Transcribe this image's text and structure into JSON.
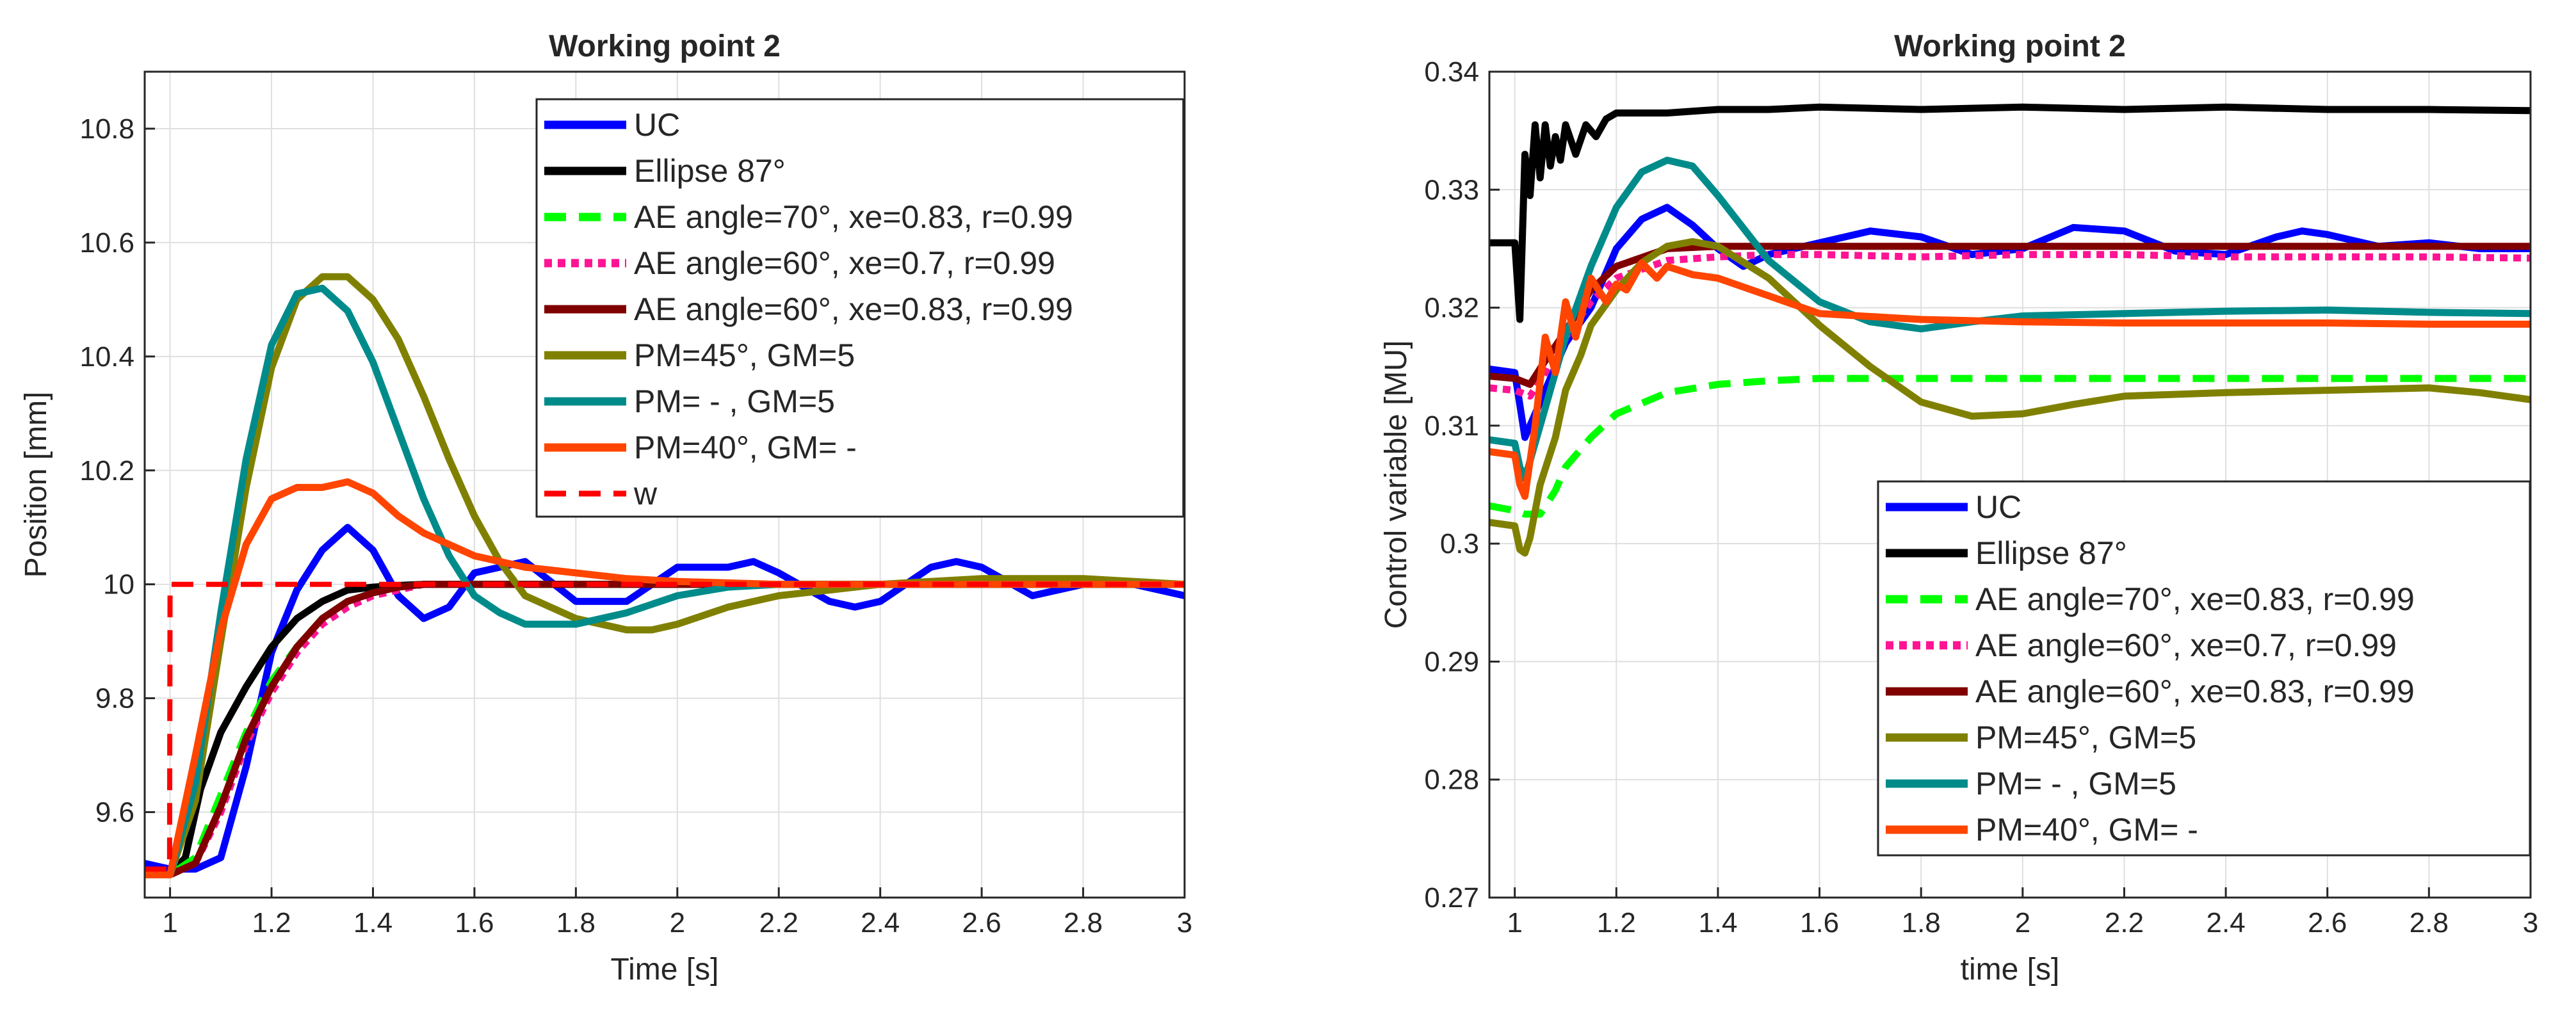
{
  "chart_data": [
    {
      "type": "line",
      "title": "Working point 2",
      "xlabel": "Time [s]",
      "ylabel": "Position [mm]",
      "xlim": [
        0.95,
        3.0
      ],
      "ylim": [
        9.45,
        10.9
      ],
      "xticks": [
        1,
        1.2,
        1.4,
        1.6,
        1.8,
        2,
        2.2,
        2.4,
        2.6,
        2.8,
        3
      ],
      "xtick_labels": [
        "1",
        "1.2",
        "1.4",
        "1.6",
        "1.8",
        "2",
        "2.2",
        "2.4",
        "2.6",
        "2.8",
        "3"
      ],
      "yticks": [
        9.6,
        9.8,
        10,
        10.2,
        10.4,
        10.6,
        10.8
      ],
      "ytick_labels": [
        "9.6",
        "9.8",
        "10",
        "10.2",
        "10.4",
        "10.6",
        "10.8"
      ],
      "grid": true,
      "legend_position": "top-right",
      "series": [
        {
          "name": "UC",
          "color": "#0000ff",
          "style": "solid",
          "x": [
            0.95,
            1.0,
            1.05,
            1.1,
            1.15,
            1.2,
            1.25,
            1.3,
            1.35,
            1.4,
            1.45,
            1.5,
            1.55,
            1.6,
            1.7,
            1.8,
            1.9,
            2.0,
            2.1,
            2.15,
            2.2,
            2.3,
            2.35,
            2.4,
            2.5,
            2.55,
            2.6,
            2.7,
            2.8,
            2.9,
            3.0
          ],
          "y": [
            9.51,
            9.5,
            9.5,
            9.52,
            9.68,
            9.88,
            9.99,
            10.06,
            10.1,
            10.06,
            9.98,
            9.94,
            9.96,
            10.02,
            10.04,
            9.97,
            9.97,
            10.03,
            10.03,
            10.04,
            10.02,
            9.97,
            9.96,
            9.97,
            10.03,
            10.04,
            10.03,
            9.98,
            10.0,
            10.0,
            9.98
          ]
        },
        {
          "name": "Ellipse 87°",
          "color": "#000000",
          "style": "solid",
          "x": [
            0.95,
            1.0,
            1.03,
            1.06,
            1.1,
            1.15,
            1.2,
            1.25,
            1.3,
            1.35,
            1.4,
            1.45,
            1.5,
            1.6,
            1.8,
            2.0,
            2.5,
            3.0
          ],
          "y": [
            9.49,
            9.49,
            9.52,
            9.64,
            9.74,
            9.82,
            9.89,
            9.94,
            9.97,
            9.99,
            9.995,
            9.998,
            10.0,
            10.0,
            10.0,
            10.0,
            10.0,
            10.0
          ]
        },
        {
          "name": "AE angle=70°, xe=0.83, r=0.99",
          "color": "#00ff00",
          "style": "dashed",
          "x": [
            0.95,
            1.0,
            1.05,
            1.1,
            1.15,
            1.2,
            1.25,
            1.3,
            1.35,
            1.4,
            1.45,
            1.5,
            1.6,
            1.8,
            2.0,
            2.5,
            3.0
          ],
          "y": [
            9.49,
            9.49,
            9.52,
            9.63,
            9.74,
            9.83,
            9.89,
            9.94,
            9.97,
            9.985,
            9.995,
            10.0,
            10.0,
            10.0,
            10.0,
            10.0,
            10.0
          ]
        },
        {
          "name": "AE angle=60°, xe=0.7, r=0.99",
          "color": "#ff1493",
          "style": "dotted",
          "x": [
            0.95,
            1.0,
            1.05,
            1.1,
            1.15,
            1.2,
            1.25,
            1.3,
            1.35,
            1.4,
            1.45,
            1.5,
            1.6,
            1.8,
            2.0,
            2.5,
            3.0
          ],
          "y": [
            9.49,
            9.49,
            9.51,
            9.6,
            9.72,
            9.81,
            9.88,
            9.93,
            9.96,
            9.98,
            9.99,
            10.0,
            10.0,
            10.0,
            10.0,
            10.0,
            10.0
          ]
        },
        {
          "name": "AE angle=60°, xe=0.83, r=0.99",
          "color": "#800000",
          "style": "solid",
          "x": [
            0.95,
            1.0,
            1.05,
            1.1,
            1.15,
            1.2,
            1.25,
            1.3,
            1.35,
            1.4,
            1.45,
            1.5,
            1.6,
            1.8,
            2.0,
            2.5,
            3.0
          ],
          "y": [
            9.49,
            9.49,
            9.51,
            9.61,
            9.73,
            9.82,
            9.89,
            9.94,
            9.97,
            9.985,
            9.995,
            10.0,
            10.0,
            10.0,
            10.0,
            10.0,
            10.0
          ]
        },
        {
          "name": "PM=45°, GM=5",
          "color": "#808000",
          "style": "solid",
          "x": [
            0.95,
            1.0,
            1.05,
            1.1,
            1.15,
            1.2,
            1.25,
            1.3,
            1.35,
            1.4,
            1.45,
            1.5,
            1.55,
            1.6,
            1.65,
            1.7,
            1.8,
            1.9,
            1.95,
            2.0,
            2.1,
            2.2,
            2.3,
            2.4,
            2.5,
            2.6,
            2.7,
            2.8,
            2.9,
            3.0
          ],
          "y": [
            9.49,
            9.49,
            9.62,
            9.9,
            10.17,
            10.38,
            10.5,
            10.54,
            10.54,
            10.5,
            10.43,
            10.33,
            10.22,
            10.12,
            10.04,
            9.98,
            9.94,
            9.92,
            9.92,
            9.93,
            9.96,
            9.98,
            9.99,
            10.0,
            10.005,
            10.01,
            10.01,
            10.01,
            10.005,
            10.0
          ]
        },
        {
          "name": "PM=   - , GM=5",
          "color": "#008b8b",
          "style": "solid",
          "x": [
            0.95,
            1.0,
            1.05,
            1.1,
            1.15,
            1.2,
            1.25,
            1.3,
            1.35,
            1.4,
            1.45,
            1.5,
            1.55,
            1.6,
            1.65,
            1.7,
            1.75,
            1.8,
            1.85,
            1.9,
            2.0,
            2.1,
            2.2,
            2.4,
            2.6,
            2.8,
            3.0
          ],
          "y": [
            9.49,
            9.49,
            9.65,
            9.95,
            10.22,
            10.42,
            10.51,
            10.52,
            10.48,
            10.39,
            10.27,
            10.15,
            10.05,
            9.98,
            9.95,
            9.93,
            9.93,
            9.93,
            9.94,
            9.95,
            9.98,
            9.995,
            10.0,
            10.0,
            10.0,
            10.0,
            10.0
          ]
        },
        {
          "name": "PM=40°, GM= -",
          "color": "#ff4500",
          "style": "solid",
          "x": [
            0.95,
            1.0,
            1.05,
            1.1,
            1.15,
            1.2,
            1.25,
            1.3,
            1.35,
            1.4,
            1.45,
            1.5,
            1.6,
            1.7,
            1.8,
            1.9,
            2.0,
            2.2,
            2.4,
            2.6,
            3.0
          ],
          "y": [
            9.49,
            9.49,
            9.7,
            9.92,
            10.07,
            10.15,
            10.17,
            10.17,
            10.18,
            10.16,
            10.12,
            10.09,
            10.05,
            10.03,
            10.02,
            10.01,
            10.005,
            10.0,
            10.0,
            10.0,
            10.0
          ]
        },
        {
          "name": "w",
          "color": "#ff0000",
          "style": "dashed",
          "x": [
            0.95,
            0.999,
            1.0,
            3.0
          ],
          "y": [
            9.5,
            9.5,
            10.0,
            10.0
          ]
        }
      ]
    },
    {
      "type": "line",
      "title": "Working point 2",
      "xlabel": "time [s]",
      "ylabel": "Control variable [MU]",
      "xlim": [
        0.95,
        3.0
      ],
      "ylim": [
        0.27,
        0.34
      ],
      "xticks": [
        1,
        1.2,
        1.4,
        1.6,
        1.8,
        2,
        2.2,
        2.4,
        2.6,
        2.8,
        3
      ],
      "xtick_labels": [
        "1",
        "1.2",
        "1.4",
        "1.6",
        "1.8",
        "2",
        "2.2",
        "2.4",
        "2.6",
        "2.8",
        "3"
      ],
      "yticks": [
        0.27,
        0.28,
        0.29,
        0.3,
        0.31,
        0.32,
        0.33,
        0.34
      ],
      "ytick_labels": [
        "0.27",
        "0.28",
        "0.29",
        "0.3",
        "0.31",
        "0.32",
        "0.33",
        "0.34"
      ],
      "grid": true,
      "legend_position": "bottom-right",
      "series": [
        {
          "name": "UC",
          "color": "#0000ff",
          "style": "solid",
          "x": [
            0.95,
            1.0,
            1.02,
            1.05,
            1.1,
            1.15,
            1.2,
            1.25,
            1.3,
            1.35,
            1.4,
            1.45,
            1.5,
            1.6,
            1.7,
            1.8,
            1.9,
            2.0,
            2.1,
            2.2,
            2.3,
            2.4,
            2.5,
            2.55,
            2.6,
            2.7,
            2.8,
            2.9,
            3.0
          ],
          "y": [
            0.3148,
            0.3145,
            0.309,
            0.312,
            0.317,
            0.32,
            0.325,
            0.3275,
            0.3285,
            0.327,
            0.325,
            0.3235,
            0.3245,
            0.3255,
            0.3265,
            0.326,
            0.3245,
            0.325,
            0.3268,
            0.3265,
            0.3248,
            0.3245,
            0.326,
            0.3265,
            0.3262,
            0.3252,
            0.3255,
            0.325,
            0.325
          ]
        },
        {
          "name": "Ellipse 87°",
          "color": "#000000",
          "style": "solid",
          "x": [
            0.95,
            1.0,
            1.01,
            1.02,
            1.03,
            1.04,
            1.05,
            1.06,
            1.07,
            1.08,
            1.09,
            1.1,
            1.12,
            1.14,
            1.16,
            1.18,
            1.2,
            1.25,
            1.3,
            1.4,
            1.5,
            1.6,
            1.8,
            2.0,
            2.2,
            2.4,
            2.6,
            2.8,
            3.0
          ],
          "y": [
            0.3255,
            0.3255,
            0.319,
            0.333,
            0.3295,
            0.3355,
            0.331,
            0.3355,
            0.332,
            0.3345,
            0.3325,
            0.3355,
            0.333,
            0.3355,
            0.3345,
            0.336,
            0.3365,
            0.3365,
            0.3365,
            0.3368,
            0.3368,
            0.337,
            0.3368,
            0.337,
            0.3368,
            0.337,
            0.3368,
            0.3368,
            0.3367
          ]
        },
        {
          "name": "AE angle=70°, xe=0.83, r=0.99",
          "color": "#00ff00",
          "style": "dashed",
          "x": [
            0.95,
            1.0,
            1.02,
            1.05,
            1.08,
            1.1,
            1.15,
            1.2,
            1.3,
            1.4,
            1.5,
            1.6,
            1.8,
            2.0,
            2.2,
            2.4,
            2.6,
            2.8,
            3.0
          ],
          "y": [
            0.3032,
            0.3028,
            0.3025,
            0.3025,
            0.3045,
            0.3065,
            0.309,
            0.311,
            0.3128,
            0.3135,
            0.3138,
            0.314,
            0.314,
            0.314,
            0.314,
            0.314,
            0.314,
            0.314,
            0.314
          ]
        },
        {
          "name": "AE angle=60°, xe=0.7, r=0.99",
          "color": "#ff1493",
          "style": "dotted",
          "x": [
            0.95,
            1.0,
            1.03,
            1.06,
            1.1,
            1.15,
            1.2,
            1.3,
            1.4,
            1.5,
            1.6,
            1.8,
            2.0,
            2.2,
            2.4,
            2.6,
            2.8,
            3.0
          ],
          "y": [
            0.3132,
            0.313,
            0.3125,
            0.3145,
            0.3175,
            0.3205,
            0.3225,
            0.324,
            0.3243,
            0.3245,
            0.3245,
            0.3243,
            0.3245,
            0.3245,
            0.3243,
            0.3243,
            0.3243,
            0.3242
          ]
        },
        {
          "name": "AE angle=60°, xe=0.83, r=0.99",
          "color": "#800000",
          "style": "solid",
          "x": [
            0.95,
            1.0,
            1.03,
            1.06,
            1.1,
            1.15,
            1.2,
            1.3,
            1.4,
            1.5,
            1.6,
            1.8,
            2.0,
            2.2,
            2.4,
            2.6,
            2.8,
            3.0
          ],
          "y": [
            0.3142,
            0.314,
            0.3135,
            0.3155,
            0.318,
            0.3215,
            0.3235,
            0.325,
            0.3252,
            0.3252,
            0.3252,
            0.3252,
            0.3252,
            0.3252,
            0.3252,
            0.3252,
            0.3252,
            0.3252
          ]
        },
        {
          "name": "PM=45°, GM=5",
          "color": "#808000",
          "style": "solid",
          "x": [
            0.95,
            1.0,
            1.01,
            1.02,
            1.03,
            1.05,
            1.08,
            1.1,
            1.13,
            1.15,
            1.2,
            1.25,
            1.3,
            1.35,
            1.4,
            1.5,
            1.6,
            1.7,
            1.8,
            1.9,
            2.0,
            2.1,
            2.2,
            2.4,
            2.6,
            2.8,
            2.9,
            3.0
          ],
          "y": [
            0.3018,
            0.3015,
            0.2995,
            0.2992,
            0.3005,
            0.305,
            0.309,
            0.313,
            0.316,
            0.3185,
            0.3215,
            0.3238,
            0.3252,
            0.3256,
            0.3252,
            0.3225,
            0.3185,
            0.315,
            0.312,
            0.3108,
            0.311,
            0.3118,
            0.3125,
            0.3128,
            0.313,
            0.3132,
            0.3128,
            0.3122
          ]
        },
        {
          "name": "PM=   - , GM=5",
          "color": "#008b8b",
          "style": "solid",
          "x": [
            0.95,
            1.0,
            1.01,
            1.02,
            1.05,
            1.1,
            1.15,
            1.2,
            1.25,
            1.3,
            1.35,
            1.4,
            1.5,
            1.6,
            1.7,
            1.8,
            1.9,
            2.0,
            2.2,
            2.4,
            2.6,
            2.8,
            3.0
          ],
          "y": [
            0.3088,
            0.3085,
            0.3065,
            0.3055,
            0.31,
            0.3175,
            0.3235,
            0.3285,
            0.3315,
            0.3325,
            0.332,
            0.3295,
            0.324,
            0.3205,
            0.3188,
            0.3182,
            0.3188,
            0.3193,
            0.3195,
            0.3197,
            0.3198,
            0.3196,
            0.3195
          ]
        },
        {
          "name": "PM=40°, GM= -",
          "color": "#ff4500",
          "style": "solid",
          "x": [
            0.95,
            1.0,
            1.01,
            1.02,
            1.04,
            1.06,
            1.08,
            1.1,
            1.12,
            1.15,
            1.18,
            1.2,
            1.22,
            1.25,
            1.28,
            1.3,
            1.35,
            1.4,
            1.5,
            1.6,
            1.8,
            2.0,
            2.2,
            2.4,
            2.6,
            2.8,
            3.0
          ],
          "y": [
            0.3078,
            0.3075,
            0.305,
            0.304,
            0.31,
            0.3175,
            0.3145,
            0.3205,
            0.3175,
            0.3225,
            0.3205,
            0.322,
            0.3215,
            0.3238,
            0.3225,
            0.3235,
            0.3228,
            0.3225,
            0.321,
            0.3195,
            0.319,
            0.3188,
            0.3187,
            0.3187,
            0.3187,
            0.3186,
            0.3186
          ]
        }
      ]
    }
  ]
}
